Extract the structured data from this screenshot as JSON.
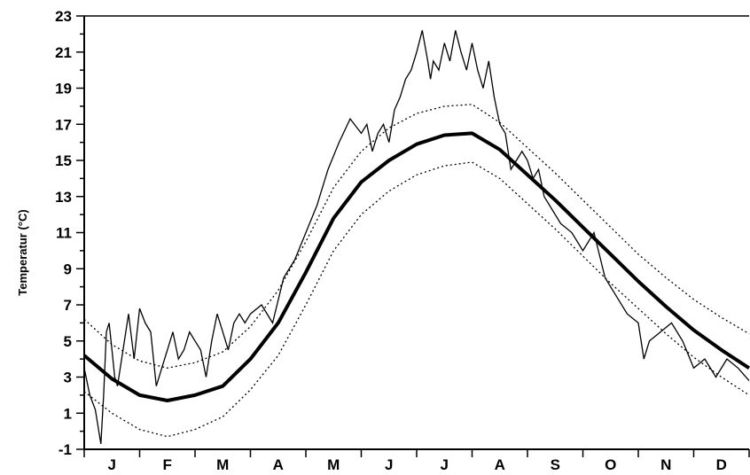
{
  "chart_data": {
    "type": "line",
    "ylabel": "Temperatur (°C)",
    "xlabel": "",
    "ylim": [
      -1,
      23
    ],
    "yticks": [
      -1,
      1,
      3,
      5,
      7,
      9,
      11,
      13,
      15,
      17,
      19,
      21,
      23
    ],
    "months": [
      "J",
      "F",
      "M",
      "A",
      "M",
      "J",
      "J",
      "A",
      "S",
      "O",
      "N",
      "D"
    ],
    "xlim": [
      0,
      12
    ],
    "grid": false,
    "series": [
      {
        "style": "thin",
        "x": [
          0.0,
          0.1,
          0.2,
          0.3,
          0.35,
          0.4,
          0.45,
          0.5,
          0.55,
          0.6,
          0.7,
          0.8,
          0.9,
          1.0,
          1.1,
          1.2,
          1.3,
          1.4,
          1.5,
          1.6,
          1.7,
          1.8,
          1.9,
          2.0,
          2.1,
          2.2,
          2.3,
          2.4,
          2.5,
          2.6,
          2.7,
          2.8,
          2.9,
          3.0,
          3.2,
          3.4,
          3.6,
          3.8,
          4.0,
          4.2,
          4.4,
          4.6,
          4.8,
          5.0,
          5.1,
          5.2,
          5.3,
          5.4,
          5.5,
          5.6,
          5.7,
          5.8,
          5.9,
          6.0,
          6.1,
          6.2,
          6.25,
          6.3,
          6.4,
          6.5,
          6.6,
          6.7,
          6.8,
          6.9,
          7.0,
          7.1,
          7.2,
          7.3,
          7.4,
          7.5,
          7.6,
          7.7,
          7.8,
          7.9,
          8.0,
          8.1,
          8.2,
          8.3,
          8.4,
          8.6,
          8.8,
          9.0,
          9.2,
          9.4,
          9.6,
          9.8,
          10.0,
          10.1,
          10.2,
          10.4,
          10.6,
          10.8,
          11.0,
          11.2,
          11.4,
          11.6,
          11.8,
          12.0
        ],
        "y": [
          3.5,
          2.0,
          1.2,
          -0.7,
          2.0,
          5.5,
          6.0,
          4.5,
          3.0,
          2.5,
          4.5,
          6.5,
          4.0,
          6.8,
          6.0,
          5.5,
          2.5,
          3.5,
          4.5,
          5.5,
          4.0,
          4.5,
          5.5,
          5.0,
          4.5,
          3.0,
          5.0,
          6.5,
          5.5,
          4.5,
          6.0,
          6.5,
          6.0,
          6.5,
          7.0,
          6.0,
          8.5,
          9.5,
          11.0,
          12.5,
          14.5,
          16.0,
          17.3,
          16.5,
          17.0,
          15.5,
          16.5,
          17.0,
          16.0,
          17.8,
          18.5,
          19.5,
          20.0,
          21.0,
          22.2,
          20.5,
          19.5,
          20.5,
          20.0,
          21.5,
          20.5,
          22.2,
          21.0,
          20.0,
          21.5,
          20.0,
          19.0,
          20.5,
          18.5,
          17.0,
          16.5,
          14.5,
          15.0,
          15.5,
          15.0,
          14.0,
          14.5,
          13.0,
          12.5,
          11.5,
          11.0,
          10.0,
          11.0,
          8.5,
          7.5,
          6.5,
          6.0,
          4.0,
          5.0,
          5.5,
          6.0,
          5.0,
          3.5,
          4.0,
          3.0,
          4.0,
          3.5,
          2.8
        ]
      },
      {
        "style": "thick",
        "x": [
          0,
          0.5,
          1,
          1.5,
          2,
          2.5,
          3,
          3.5,
          4,
          4.5,
          5,
          5.5,
          6,
          6.5,
          7,
          7.5,
          8,
          8.5,
          9,
          9.5,
          10,
          10.5,
          11,
          11.5,
          12
        ],
        "y": [
          4.2,
          2.9,
          2.0,
          1.7,
          2.0,
          2.5,
          4.0,
          6.0,
          8.8,
          11.8,
          13.8,
          15.0,
          15.9,
          16.4,
          16.5,
          15.6,
          14.2,
          12.8,
          11.3,
          9.8,
          8.3,
          6.9,
          5.6,
          4.5,
          3.5
        ]
      },
      {
        "style": "dotted",
        "x": [
          0,
          0.5,
          1,
          1.5,
          2,
          2.5,
          3,
          3.5,
          4,
          4.5,
          5,
          5.5,
          6,
          6.5,
          7,
          7.5,
          8,
          8.5,
          9,
          9.5,
          10,
          10.5,
          11,
          11.5,
          12
        ],
        "y": [
          6.2,
          4.8,
          3.9,
          3.5,
          3.8,
          4.4,
          5.8,
          7.8,
          10.5,
          13.5,
          15.5,
          16.8,
          17.6,
          18.0,
          18.1,
          17.1,
          15.7,
          14.3,
          12.8,
          11.3,
          9.8,
          8.5,
          7.3,
          6.3,
          5.4
        ]
      },
      {
        "style": "dotted",
        "x": [
          0,
          0.5,
          1,
          1.5,
          2,
          2.5,
          3,
          3.5,
          4,
          4.5,
          5,
          5.5,
          6,
          6.5,
          7,
          7.5,
          8,
          8.5,
          9,
          9.5,
          10,
          10.5,
          11,
          11.5,
          12
        ],
        "y": [
          2.2,
          1.0,
          0.1,
          -0.3,
          0.1,
          0.8,
          2.3,
          4.2,
          7.0,
          10.0,
          12.0,
          13.3,
          14.2,
          14.7,
          14.9,
          14.0,
          12.6,
          11.2,
          9.7,
          8.2,
          6.8,
          5.4,
          4.1,
          3.0,
          2.0
        ]
      }
    ]
  }
}
